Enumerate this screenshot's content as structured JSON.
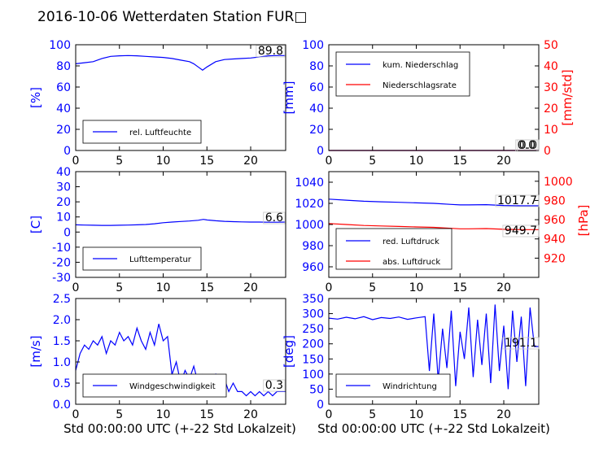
{
  "title": "2016-10-06 Wetterdaten Station FUR□",
  "colors": {
    "blue": "#0000ff",
    "red": "#ff0000",
    "black": "#000000",
    "frame": "#000000"
  },
  "xlabel": "Std 00:00:00 UTC (+-22 Std Lokalzeit)",
  "chart_data": [
    {
      "id": "humidity",
      "type": "line",
      "ylabel": "[%]",
      "xlim": [
        0,
        24
      ],
      "ylim": [
        0,
        100
      ],
      "xticks": [
        0,
        5,
        10,
        15,
        20
      ],
      "yticks": [
        0,
        20,
        40,
        60,
        80,
        100
      ],
      "series": [
        {
          "name": "rel. Luftfeuchte",
          "color": "#0000ff",
          "x": [
            0,
            1,
            2,
            3,
            4,
            5,
            6,
            7,
            8,
            9,
            10,
            11,
            12,
            13,
            13.5,
            14,
            14.5,
            15,
            16,
            17,
            18,
            19,
            20,
            21,
            22,
            23,
            24
          ],
          "y": [
            82,
            83,
            84,
            87,
            89,
            89.5,
            89.8,
            89.5,
            89,
            88.5,
            88,
            87,
            85.5,
            84,
            82,
            79,
            76,
            79,
            84,
            86,
            86.5,
            87,
            87.5,
            88.5,
            89.5,
            89.8,
            89.8
          ]
        }
      ],
      "annotation": "89.8"
    },
    {
      "id": "precip",
      "type": "line",
      "ylabel": "[mm]",
      "ylabel2": "[mm/std]",
      "xlim": [
        0,
        24
      ],
      "ylim": [
        0,
        100
      ],
      "ylim2": [
        0,
        50
      ],
      "xticks": [
        0,
        5,
        10,
        15,
        20
      ],
      "yticks": [
        0,
        20,
        40,
        60,
        80,
        100
      ],
      "yticks2": [
        0,
        10,
        20,
        30,
        40,
        50
      ],
      "series": [
        {
          "name": "kum. Niederschlag",
          "color": "#0000ff",
          "x": [
            0,
            24
          ],
          "y": [
            0,
            0
          ]
        },
        {
          "name": "Niederschlagsrate",
          "color": "#ff0000",
          "axis": "right",
          "x": [
            0,
            24
          ],
          "y": [
            0,
            0
          ]
        }
      ],
      "annotation": "0.0",
      "annotation2": "0.0"
    },
    {
      "id": "temperature",
      "type": "line",
      "ylabel": "[C]",
      "xlim": [
        0,
        24
      ],
      "ylim": [
        -30,
        40
      ],
      "xticks": [
        0,
        5,
        10,
        15,
        20
      ],
      "yticks": [
        -30,
        -20,
        -10,
        0,
        10,
        20,
        30,
        40
      ],
      "series": [
        {
          "name": "Lufttemperatur",
          "color": "#0000ff",
          "x": [
            0,
            1,
            2,
            3,
            4,
            5,
            6,
            7,
            8,
            9,
            10,
            11,
            12,
            13,
            14,
            14.6,
            15,
            16,
            17,
            18,
            19,
            20,
            21,
            22,
            23,
            24
          ],
          "y": [
            4.8,
            4.6,
            4.5,
            4.4,
            4.4,
            4.5,
            4.6,
            4.8,
            5.0,
            5.5,
            6.2,
            6.6,
            7.0,
            7.3,
            7.8,
            8.4,
            8.0,
            7.5,
            7.1,
            6.9,
            6.7,
            6.6,
            6.6,
            6.5,
            6.5,
            6.6
          ]
        }
      ],
      "annotation": "6.6"
    },
    {
      "id": "pressure",
      "type": "line",
      "ylabel": "[hPa]",
      "xlim": [
        0,
        24
      ],
      "ylim": [
        950,
        1050
      ],
      "ylim2": [
        900,
        1010
      ],
      "xticks": [
        0,
        5,
        10,
        15,
        20
      ],
      "yticks": [
        960,
        980,
        1000,
        1020,
        1040
      ],
      "yticks2": [
        920,
        940,
        960,
        980,
        1000
      ],
      "series": [
        {
          "name": "red. Luftdruck",
          "color": "#0000ff",
          "x": [
            0,
            2,
            4,
            6,
            8,
            10,
            12,
            14,
            15,
            16,
            18,
            20,
            22,
            24
          ],
          "y": [
            1024,
            1023,
            1022,
            1021.5,
            1021,
            1020.5,
            1020,
            1019,
            1018.5,
            1018.5,
            1018.8,
            1018,
            1017.7,
            1017.7
          ]
        },
        {
          "name": "abs. Luftdruck",
          "color": "#ff0000",
          "axis": "right",
          "x": [
            0,
            2,
            4,
            6,
            8,
            10,
            12,
            14,
            15,
            16,
            18,
            20,
            22,
            24
          ],
          "y": [
            956,
            955,
            954,
            953.5,
            953,
            952.5,
            952,
            951,
            950.5,
            950.5,
            950.8,
            950,
            949.7,
            949.7
          ]
        }
      ],
      "annotation": "1017.7",
      "annotation2": "949.7"
    },
    {
      "id": "windspeed",
      "type": "line",
      "ylabel": "[m/s]",
      "xlim": [
        0,
        24
      ],
      "ylim": [
        0,
        2.5
      ],
      "xticks": [
        0,
        5,
        10,
        15,
        20
      ],
      "yticks": [
        0.0,
        0.5,
        1.0,
        1.5,
        2.0,
        2.5
      ],
      "series": [
        {
          "name": "Windgeschwindigkeit",
          "color": "#0000ff",
          "x": [
            0,
            0.5,
            1,
            1.5,
            2,
            2.5,
            3,
            3.5,
            4,
            4.5,
            5,
            5.5,
            6,
            6.5,
            7,
            7.5,
            8,
            8.5,
            9,
            9.5,
            10,
            10.5,
            11,
            11.5,
            12,
            12.5,
            13,
            13.5,
            14,
            14.5,
            15,
            15.5,
            16,
            16.5,
            17,
            17.5,
            18,
            18.5,
            19,
            19.5,
            20,
            20.5,
            21,
            21.5,
            22,
            22.5,
            23,
            23.5,
            24
          ],
          "y": [
            0.8,
            1.2,
            1.4,
            1.3,
            1.5,
            1.4,
            1.6,
            1.2,
            1.5,
            1.4,
            1.7,
            1.5,
            1.6,
            1.4,
            1.8,
            1.5,
            1.3,
            1.7,
            1.4,
            1.9,
            1.5,
            1.6,
            0.7,
            1.0,
            0.5,
            0.8,
            0.6,
            0.9,
            0.5,
            0.7,
            0.6,
            0.4,
            0.7,
            0.3,
            0.6,
            0.3,
            0.5,
            0.3,
            0.3,
            0.2,
            0.3,
            0.2,
            0.3,
            0.2,
            0.3,
            0.2,
            0.3,
            0.3,
            0.3
          ]
        }
      ],
      "annotation": "0.3"
    },
    {
      "id": "winddir",
      "type": "line",
      "ylabel": "[deg]",
      "xlim": [
        0,
        24
      ],
      "ylim": [
        0,
        350
      ],
      "xticks": [
        0,
        5,
        10,
        15,
        20
      ],
      "yticks": [
        0,
        50,
        100,
        150,
        200,
        250,
        300,
        350
      ],
      "series": [
        {
          "name": "Windrichtung",
          "color": "#0000ff",
          "x": [
            0,
            1,
            2,
            3,
            4,
            5,
            6,
            7,
            8,
            9,
            10,
            11,
            11.5,
            12,
            12.5,
            13,
            13.5,
            14,
            14.5,
            15,
            15.5,
            16,
            16.5,
            17,
            17.5,
            18,
            18.5,
            19,
            19.5,
            20,
            20.5,
            21,
            21.5,
            22,
            22.5,
            23,
            23.5,
            24
          ],
          "y": [
            285,
            282,
            288,
            283,
            290,
            280,
            287,
            284,
            289,
            281,
            286,
            290,
            110,
            300,
            80,
            250,
            120,
            310,
            60,
            240,
            150,
            320,
            90,
            280,
            130,
            300,
            70,
            330,
            110,
            260,
            50,
            310,
            140,
            290,
            60,
            320,
            191.1,
            191.1
          ]
        }
      ],
      "annotation": "191.1"
    }
  ]
}
